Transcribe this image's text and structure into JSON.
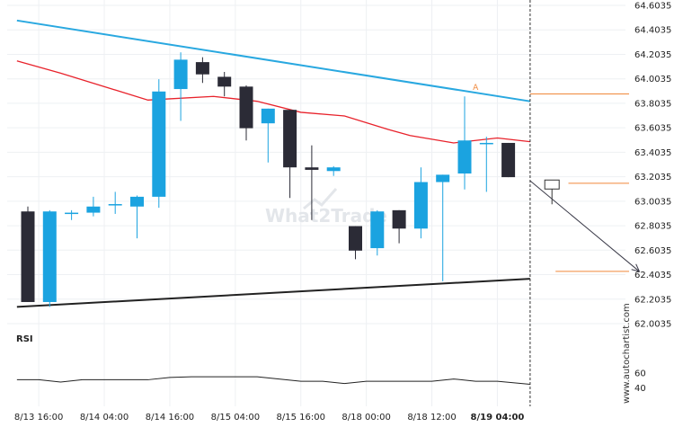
{
  "chart_data": {
    "type": "candlestick",
    "y_ticks": [
      "64.6035",
      "64.4035",
      "64.2035",
      "64.0035",
      "63.8035",
      "63.6035",
      "63.4035",
      "63.2035",
      "63.0035",
      "62.8035",
      "62.6035",
      "62.4035",
      "62.2035",
      "62.0035"
    ],
    "ylim": [
      62.0035,
      64.6035
    ],
    "x_ticks": [
      "8/13 16:00",
      "8/14 04:00",
      "8/14 16:00",
      "8/15 04:00",
      "8/15 16:00",
      "8/18 00:00",
      "8/18 12:00",
      "8/19 04:00"
    ],
    "x_tick_bars": [
      0.5,
      3.5,
      6.5,
      9.5,
      12.5,
      15.5,
      18.5,
      21.5
    ],
    "candles": [
      {
        "o": 62.92,
        "h": 62.96,
        "l": 62.18,
        "c": 62.18
      },
      {
        "o": 62.18,
        "h": 62.93,
        "l": 62.14,
        "c": 62.92
      },
      {
        "o": 62.9,
        "h": 62.93,
        "l": 62.85,
        "c": 62.91
      },
      {
        "o": 62.91,
        "h": 63.04,
        "l": 62.88,
        "c": 62.96
      },
      {
        "o": 62.97,
        "h": 63.08,
        "l": 62.9,
        "c": 62.98
      },
      {
        "o": 62.96,
        "h": 63.05,
        "l": 62.7,
        "c": 63.04
      },
      {
        "o": 63.04,
        "h": 64.0,
        "l": 62.95,
        "c": 63.9
      },
      {
        "o": 63.92,
        "h": 64.22,
        "l": 63.66,
        "c": 64.16
      },
      {
        "o": 64.14,
        "h": 64.18,
        "l": 63.97,
        "c": 64.04
      },
      {
        "o": 64.02,
        "h": 64.06,
        "l": 63.86,
        "c": 63.94
      },
      {
        "o": 63.94,
        "h": 63.95,
        "l": 63.5,
        "c": 63.6
      },
      {
        "o": 63.64,
        "h": 63.76,
        "l": 63.32,
        "c": 63.76
      },
      {
        "o": 63.75,
        "h": 63.75,
        "l": 63.03,
        "c": 63.28
      },
      {
        "o": 63.28,
        "h": 63.46,
        "l": 62.85,
        "c": 63.26
      },
      {
        "o": 63.25,
        "h": 63.29,
        "l": 63.21,
        "c": 63.28
      },
      {
        "o": 62.8,
        "h": 62.8,
        "l": 62.53,
        "c": 62.6
      },
      {
        "o": 62.62,
        "h": 62.93,
        "l": 62.56,
        "c": 62.92
      },
      {
        "o": 62.93,
        "h": 62.93,
        "l": 62.66,
        "c": 62.78
      },
      {
        "o": 62.78,
        "h": 63.28,
        "l": 62.7,
        "c": 63.16
      },
      {
        "o": 63.16,
        "h": 63.22,
        "l": 62.35,
        "c": 63.22
      },
      {
        "o": 63.23,
        "h": 63.86,
        "l": 63.1,
        "c": 63.5
      },
      {
        "o": 63.48,
        "h": 63.53,
        "l": 63.08,
        "c": 63.48
      },
      {
        "o": 63.48,
        "h": 63.48,
        "l": 63.2,
        "c": 63.2
      }
    ],
    "ma_series": [
      {
        "bar": -0.5,
        "v": 64.15
      },
      {
        "bar": 1.5,
        "v": 64.05
      },
      {
        "bar": 3.5,
        "v": 63.94
      },
      {
        "bar": 5.5,
        "v": 63.83
      },
      {
        "bar": 6.5,
        "v": 63.84
      },
      {
        "bar": 8.5,
        "v": 63.86
      },
      {
        "bar": 10.5,
        "v": 63.82
      },
      {
        "bar": 12.5,
        "v": 63.73
      },
      {
        "bar": 14.5,
        "v": 63.7
      },
      {
        "bar": 16.5,
        "v": 63.59
      },
      {
        "bar": 17.5,
        "v": 63.54
      },
      {
        "bar": 19.5,
        "v": 63.48
      },
      {
        "bar": 21.5,
        "v": 63.52
      },
      {
        "bar": 23.0,
        "v": 63.49
      }
    ],
    "resistance_line": {
      "from": {
        "bar": -0.5,
        "v": 64.48
      },
      "to": {
        "bar": 23.0,
        "v": 63.82
      }
    },
    "support_line": {
      "from": {
        "bar": -0.5,
        "v": 62.14
      },
      "to": {
        "bar": 23.0,
        "v": 62.37
      }
    },
    "current_bar": 23.0,
    "projection_from": {
      "bar": 23.0,
      "v": 63.17
    },
    "projection_to": {
      "bar": 28.0,
      "v": 62.43
    },
    "marker_box": {
      "bar": 24.0,
      "v": 63.14
    },
    "level_upper": {
      "v": 63.88,
      "from_bar": 23.0
    },
    "level_mid": {
      "v": 63.15,
      "from_bar": 25.0
    },
    "level_lower": {
      "v": 62.43,
      "from_bar": 24.0
    },
    "touch_label": {
      "text": "A",
      "bar": 20.5,
      "v": 63.9
    },
    "rsi": {
      "label": "RSI",
      "ticks": [
        60,
        40
      ],
      "ylim": [
        30,
        85
      ],
      "values": [
        {
          "bar": -0.5,
          "v": 51
        },
        {
          "bar": 0.5,
          "v": 51
        },
        {
          "bar": 1.5,
          "v": 48
        },
        {
          "bar": 2.5,
          "v": 51
        },
        {
          "bar": 5.5,
          "v": 51
        },
        {
          "bar": 6.5,
          "v": 54
        },
        {
          "bar": 7.5,
          "v": 55
        },
        {
          "bar": 10.5,
          "v": 55
        },
        {
          "bar": 12.5,
          "v": 49
        },
        {
          "bar": 13.5,
          "v": 49
        },
        {
          "bar": 14.5,
          "v": 46
        },
        {
          "bar": 15.5,
          "v": 49
        },
        {
          "bar": 18.5,
          "v": 49
        },
        {
          "bar": 19.5,
          "v": 52
        },
        {
          "bar": 20.5,
          "v": 49
        },
        {
          "bar": 21.5,
          "v": 49
        },
        {
          "bar": 23.0,
          "v": 45
        }
      ]
    }
  },
  "colors": {
    "bull": "#1ba3e0",
    "bear": "#2b2b36",
    "ma": "#e8222b",
    "resistance": "#29a8e0",
    "support": "#222222",
    "level": "#f0883a",
    "arrow": "#3a3a48",
    "grid": "#eef0f3"
  },
  "watermark": "What2Trade",
  "side_text": "www.autochartist.com"
}
